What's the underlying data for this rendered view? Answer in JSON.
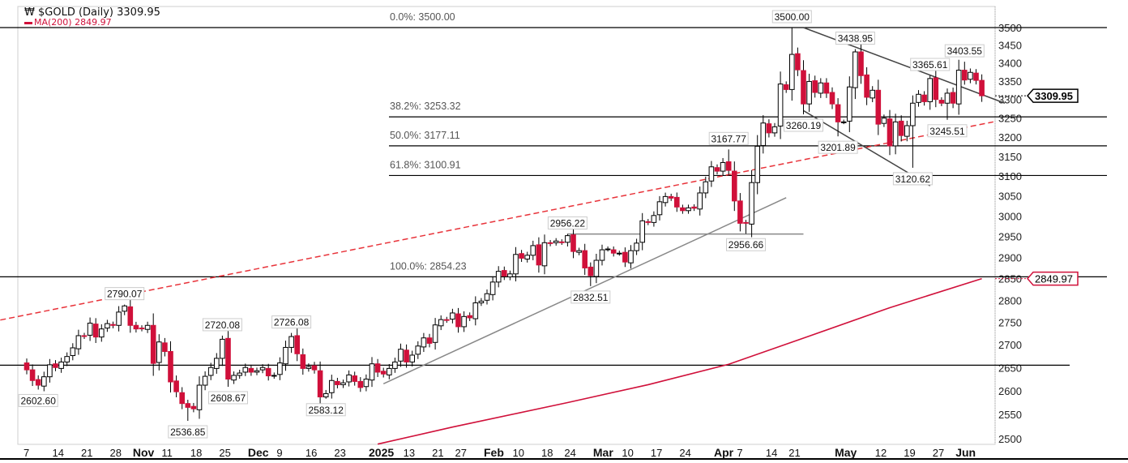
{
  "header": {
    "title": "$GOLD (Daily) 3309.95",
    "ma_label": "MA(200) 2849.97",
    "logo_icon": "chart-logo-icon"
  },
  "colors": {
    "up": "#ffffff",
    "down": "#d0103a",
    "ma": "#d0103a",
    "trend": "#e8333a",
    "grid": "#000000"
  },
  "chart_data": {
    "type": "candlestick",
    "title": "$GOLD (Daily) 3309.95",
    "yscale": "log",
    "ylim": [
      2500,
      3500
    ],
    "yticks": [
      3500,
      3450,
      3400,
      3350,
      3300,
      3250,
      3200,
      3150,
      3100,
      3050,
      3000,
      2950,
      2900,
      2850,
      2800,
      2750,
      2700,
      2650,
      2600,
      2550,
      2500
    ],
    "ytick_labels": [
      "3500",
      "3450",
      "3400",
      "3350",
      "3300",
      "3250",
      "3200",
      "3150",
      "3100",
      "3050",
      "3000",
      "2950",
      "2900",
      "2850",
      "2800",
      "2750",
      "2700",
      "2650",
      "2600",
      "2550",
      "2500"
    ],
    "xticks": [
      {
        "i": 0,
        "label": "7"
      },
      {
        "i": 5,
        "label": "14"
      },
      {
        "i": 10,
        "label": "21"
      },
      {
        "i": 15,
        "label": "28"
      },
      {
        "i": 19,
        "label": "Nov",
        "bold": true
      },
      {
        "i": 24,
        "label": "11"
      },
      {
        "i": 29,
        "label": "18"
      },
      {
        "i": 34,
        "label": "25"
      },
      {
        "i": 39,
        "label": "Dec",
        "bold": true
      },
      {
        "i": 44,
        "label": "9"
      },
      {
        "i": 49,
        "label": "16"
      },
      {
        "i": 54,
        "label": "23"
      },
      {
        "i": 60,
        "label": "2025",
        "bold": true
      },
      {
        "i": 66,
        "label": "13"
      },
      {
        "i": 71,
        "label": "21"
      },
      {
        "i": 75,
        "label": "27"
      },
      {
        "i": 80,
        "label": "Feb",
        "bold": true
      },
      {
        "i": 85,
        "label": "10"
      },
      {
        "i": 90,
        "label": "18"
      },
      {
        "i": 94,
        "label": "24"
      },
      {
        "i": 99,
        "label": "Mar",
        "bold": true
      },
      {
        "i": 104,
        "label": "10"
      },
      {
        "i": 109,
        "label": "17"
      },
      {
        "i": 114,
        "label": "24"
      },
      {
        "i": 120,
        "label": "Apr",
        "bold": true
      },
      {
        "i": 124,
        "label": "7"
      },
      {
        "i": 129,
        "label": "14"
      },
      {
        "i": 133,
        "label": "21"
      },
      {
        "i": 141,
        "label": "May",
        "bold": true
      },
      {
        "i": 148,
        "label": "12"
      },
      {
        "i": 153,
        "label": "19"
      },
      {
        "i": 158,
        "label": "27"
      },
      {
        "i": 162,
        "label": "Jun",
        "bold": true
      }
    ],
    "closes": [
      2645,
      2622,
      2612,
      2630,
      2656,
      2650,
      2662,
      2674,
      2693,
      2720,
      2719,
      2748,
      2717,
      2735,
      2747,
      2743,
      2773,
      2787,
      2743,
      2735,
      2736,
      2743,
      2659,
      2706,
      2685,
      2619,
      2598,
      2573,
      2565,
      2562,
      2612,
      2631,
      2650,
      2670,
      2712,
      2625,
      2633,
      2638,
      2650,
      2640,
      2643,
      2650,
      2632,
      2633,
      2660,
      2694,
      2718,
      2680,
      2648,
      2652,
      2645,
      2587,
      2594,
      2622,
      2613,
      2617,
      2634,
      2620,
      2607,
      2625,
      2658,
      2640,
      2636,
      2648,
      2662,
      2690,
      2662,
      2677,
      2697,
      2715,
      2703,
      2744,
      2756,
      2755,
      2771,
      2740,
      2763,
      2760,
      2794,
      2798,
      2815,
      2842,
      2867,
      2856,
      2861,
      2907,
      2898,
      2905,
      2928,
      2882,
      2935,
      2933,
      2939,
      2936,
      2952,
      2914,
      2916,
      2875,
      2857,
      2893,
      2918,
      2920,
      2910,
      2910,
      2889,
      2916,
      2934,
      2988,
      2984,
      3001,
      3035,
      3048,
      3044,
      3022,
      3013,
      3020,
      3019,
      3057,
      3085,
      3123,
      3112,
      3134,
      3114,
      3037,
      2982,
      2982,
      3083,
      3176,
      3237,
      3211,
      3227,
      3342,
      3327,
      3424,
      3381,
      3288,
      3349,
      3319,
      3345,
      3317,
      3288,
      3240,
      3240,
      3334,
      3431,
      3365,
      3306,
      3325,
      3234,
      3250,
      3177,
      3240,
      3204,
      3230,
      3290,
      3314,
      3294,
      3357,
      3300,
      3290,
      3317,
      3290,
      3380,
      3353,
      3374,
      3352,
      3310
    ],
    "annotations": [
      {
        "i": 2,
        "value": 2602.6,
        "label": "2602.60",
        "pos": "below"
      },
      {
        "i": 17,
        "value": 2790.07,
        "label": "2790.07",
        "pos": "above"
      },
      {
        "i": 28,
        "value": 2536.85,
        "label": "2536.85",
        "pos": "below"
      },
      {
        "i": 34,
        "value": 2720.08,
        "label": "2720.08",
        "pos": "above"
      },
      {
        "i": 35,
        "value": 2608.67,
        "label": "2608.67",
        "pos": "below"
      },
      {
        "i": 46,
        "value": 2726.08,
        "label": "2726.08",
        "pos": "above"
      },
      {
        "i": 52,
        "value": 2583.12,
        "label": "2583.12",
        "pos": "below"
      },
      {
        "i": 94,
        "value": 2956.22,
        "label": "2956.22",
        "pos": "above"
      },
      {
        "i": 98,
        "value": 2832.51,
        "label": "2832.51",
        "pos": "below"
      },
      {
        "i": 122,
        "value": 3167.77,
        "label": "3167.77",
        "pos": "above"
      },
      {
        "i": 125,
        "value": 2956.66,
        "label": "2956.66",
        "pos": "below"
      },
      {
        "i": 133,
        "value": 3500.0,
        "label": "3500.00",
        "pos": "above"
      },
      {
        "i": 135,
        "value": 3260.19,
        "label": "3260.19",
        "pos": "below"
      },
      {
        "i": 144,
        "value": 3438.95,
        "label": "3438.95",
        "pos": "above"
      },
      {
        "i": 141,
        "value": 3201.89,
        "label": "3201.89",
        "pos": "below"
      },
      {
        "i": 154,
        "value": 3120.62,
        "label": "3120.62",
        "pos": "below"
      },
      {
        "i": 157,
        "value": 3365.61,
        "label": "3365.61",
        "pos": "above"
      },
      {
        "i": 160,
        "value": 3245.51,
        "label": "3245.51",
        "pos": "below"
      },
      {
        "i": 163,
        "value": 3403.55,
        "label": "3403.55",
        "pos": "above"
      }
    ],
    "fib_levels": [
      {
        "value": 3500.0,
        "label": "0.0%: 3500.00",
        "full": true
      },
      {
        "value": 3253.32,
        "label": "38.2%: 3253.32",
        "full": false
      },
      {
        "value": 3177.11,
        "label": "50.0%: 3177.11",
        "full": false
      },
      {
        "value": 3100.91,
        "label": "61.8%: 3100.91",
        "full": false
      },
      {
        "value": 2854.23,
        "label": "100.0%: 2854.23",
        "full": true
      }
    ],
    "support_level": 2655,
    "ma200": [
      [
        61,
        2489
      ],
      [
        74,
        2524
      ],
      [
        94,
        2575
      ],
      [
        108,
        2613
      ],
      [
        122,
        2657
      ],
      [
        136,
        2719
      ],
      [
        150,
        2783
      ],
      [
        166,
        2849.97
      ]
    ],
    "trendlines": [
      {
        "name": "long-term-dashed-trendline",
        "style": "dashed-red",
        "from": [
          -4.6,
          2755
        ],
        "to": [
          168,
          3240
        ]
      },
      {
        "name": "uptrend-line",
        "style": "gray",
        "from": [
          62,
          2615
        ],
        "to": [
          132,
          3045
        ]
      },
      {
        "name": "breakout-level-line",
        "style": "gray",
        "from": [
          94,
          2956
        ],
        "to": [
          135,
          2956
        ]
      },
      {
        "name": "channel-upper-line",
        "style": "dark",
        "from": [
          135,
          3500
        ],
        "to": [
          170,
          3290
        ]
      },
      {
        "name": "channel-lower-line",
        "style": "dark",
        "from": [
          135,
          3270
        ],
        "to": [
          157,
          3075
        ]
      }
    ],
    "last_price": {
      "value": 3309.95,
      "label": "3309.95"
    },
    "ma_tag": {
      "value": 2849.97,
      "label": "2849.97"
    }
  }
}
